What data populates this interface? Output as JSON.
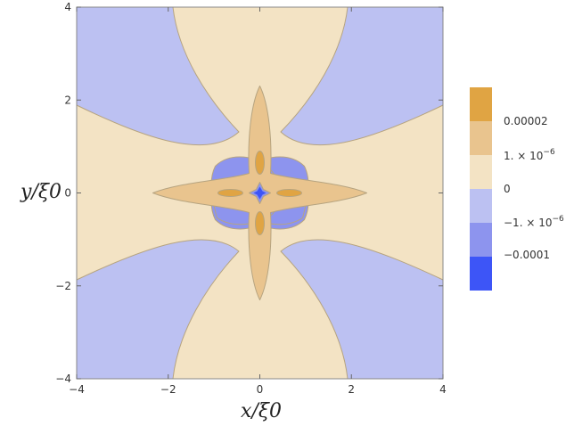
{
  "chart_data": {
    "type": "contour",
    "xlabel": "x/ξ0",
    "ylabel": "y/ξ0",
    "xlim": [
      -4,
      4
    ],
    "ylim": [
      -4,
      4
    ],
    "xticks": [
      "-4",
      "-2",
      "0",
      "2",
      "4"
    ],
    "yticks": [
      "-4",
      "-2",
      "0",
      "2",
      "4"
    ],
    "legend_position": "right",
    "legend": [
      {
        "label": "0.00002",
        "color": "#e0a443"
      },
      {
        "label": "1. × 10^-6",
        "color": "#e9c48e"
      },
      {
        "label": "",
        "color": "#f3e3c4"
      },
      {
        "label": "0",
        "color": "#bcc1f2"
      },
      {
        "label": "-1. × 10^-6",
        "color": "#8d94ee"
      },
      {
        "label": "-0.0001",
        "color": "#3d55f7"
      }
    ],
    "legend_text": {
      "l0": "0.00002",
      "l1_base": "1. × 10",
      "l1_exp": "−6",
      "l2": "0",
      "l3_base": "−1. × 10",
      "l3_exp": "−6",
      "l4": "−0.0001"
    },
    "regions": {
      "background_level": "0 to -1e-6",
      "lobes_level": "0 to 1e-6",
      "cross_level": "1e-6 to 0.00002",
      "diagonal_petals_level": "-1e-6 to -0.0001",
      "center_level": "< -0.0001"
    },
    "colors": {
      "bg_neg": "#bcc1f2",
      "pos_low": "#f3e3c4",
      "pos_mid": "#e9c48e",
      "pos_high": "#e0a443",
      "neg_mid": "#8d94ee",
      "neg_high": "#3d55f7"
    }
  }
}
